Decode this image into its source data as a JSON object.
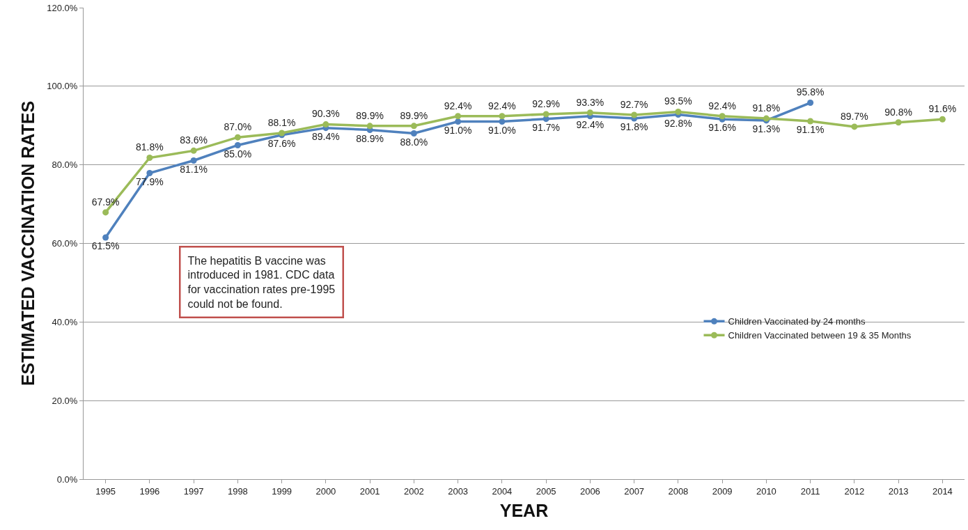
{
  "chart_data": {
    "type": "line",
    "xlabel": "YEAR",
    "ylabel": "ESTIMATED VACCINATION RATES",
    "categories": [
      "1995",
      "1996",
      "1997",
      "1998",
      "1999",
      "2000",
      "2001",
      "2002",
      "2003",
      "2004",
      "2005",
      "2006",
      "2007",
      "2008",
      "2009",
      "2010",
      "2011",
      "2012",
      "2013",
      "2014"
    ],
    "series": [
      {
        "name": "Children Vaccinated by 24 months",
        "color": "#4f81bd",
        "values": [
          61.5,
          77.9,
          81.1,
          85.0,
          87.6,
          89.4,
          88.9,
          88.0,
          91.0,
          91.0,
          91.7,
          92.4,
          91.8,
          92.8,
          91.6,
          91.3,
          95.8,
          null,
          null,
          null
        ],
        "value_labels": [
          "61.5%",
          "77.9%",
          "81.1%",
          "85.0%",
          "87.6%",
          "89.4%",
          "88.9%",
          "88.0%",
          "91.0%",
          "91.0%",
          "91.7%",
          "92.4%",
          "91.8%",
          "92.8%",
          "91.6%",
          "91.3%",
          "95.8%",
          null,
          null,
          null
        ]
      },
      {
        "name": "Children Vaccinated between 19 & 35 Months",
        "color": "#9bbb59",
        "values": [
          67.9,
          81.8,
          83.6,
          87.0,
          88.1,
          90.3,
          89.9,
          89.9,
          92.4,
          92.4,
          92.9,
          93.3,
          92.7,
          93.5,
          92.4,
          91.8,
          91.1,
          89.7,
          90.8,
          91.6
        ],
        "value_labels": [
          "67.9%",
          "81.8%",
          "83.6%",
          "87.0%",
          "88.1%",
          "90.3%",
          "89.9%",
          "89.9%",
          "92.4%",
          "92.4%",
          "92.9%",
          "93.3%",
          "92.7%",
          "93.5%",
          "92.4%",
          "91.8%",
          "91.1%",
          "89.7%",
          "90.8%",
          "91.6%"
        ]
      }
    ],
    "ylim": [
      0,
      120
    ],
    "yticks": [
      {
        "value": 0,
        "label": "0.0%"
      },
      {
        "value": 20,
        "label": "20.0%"
      },
      {
        "value": 40,
        "label": "40.0%"
      },
      {
        "value": 60,
        "label": "60.0%"
      },
      {
        "value": 80,
        "label": "80.0%"
      },
      {
        "value": 100,
        "label": "100.0%"
      },
      {
        "value": 120,
        "label": "120.0%"
      }
    ],
    "grid": "y",
    "legend": "right",
    "marker": "circle",
    "line_style": "solid",
    "annotations": [
      "The hepatitis B vaccine was\nintroduced in 1981. CDC data\nfor vaccination rates pre-1995\ncould not be found."
    ]
  }
}
